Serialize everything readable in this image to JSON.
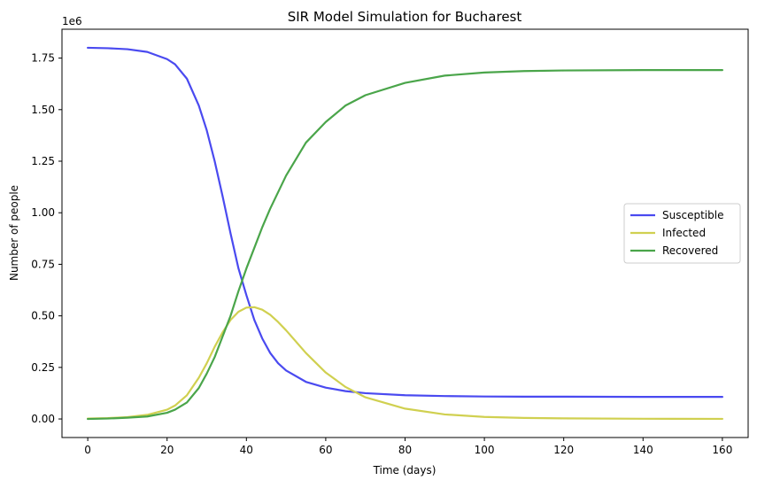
{
  "chart_data": {
    "type": "line",
    "title": "SIR Model Simulation for Bucharest",
    "xlabel": "Time (days)",
    "ylabel": "Number of people",
    "y_offset_label": "1e6",
    "xlim": [
      -6.5,
      166.5
    ],
    "ylim": [
      -0.09,
      1.89
    ],
    "y_scale_factor": 1000000,
    "xticks": [
      0,
      20,
      40,
      60,
      80,
      100,
      120,
      140,
      160
    ],
    "yticks": [
      0.0,
      0.25,
      0.5,
      0.75,
      1.0,
      1.25,
      1.5,
      1.75
    ],
    "ytick_labels": [
      "0.00",
      "0.25",
      "0.50",
      "0.75",
      "1.00",
      "1.25",
      "1.50",
      "1.75"
    ],
    "xtick_labels": [
      "0",
      "20",
      "40",
      "60",
      "80",
      "100",
      "120",
      "140",
      "160"
    ],
    "grid": false,
    "legend_position": "center-right",
    "x": [
      0,
      5,
      10,
      15,
      20,
      22,
      25,
      28,
      30,
      32,
      34,
      36,
      38,
      40,
      42,
      44,
      46,
      48,
      50,
      55,
      60,
      65,
      70,
      80,
      90,
      100,
      110,
      120,
      140,
      160
    ],
    "series": [
      {
        "name": "Susceptible",
        "color": "#4a4af0",
        "values": [
          1.8,
          1.798,
          1.793,
          1.78,
          1.745,
          1.72,
          1.65,
          1.52,
          1.4,
          1.25,
          1.08,
          0.9,
          0.73,
          0.6,
          0.48,
          0.39,
          0.32,
          0.27,
          0.235,
          0.18,
          0.152,
          0.135,
          0.125,
          0.115,
          0.111,
          0.109,
          0.108,
          0.108,
          0.107,
          0.107
        ]
      },
      {
        "name": "Infected",
        "color": "#d0d050",
        "values": [
          0.002,
          0.004,
          0.009,
          0.02,
          0.045,
          0.065,
          0.115,
          0.2,
          0.27,
          0.35,
          0.42,
          0.48,
          0.52,
          0.54,
          0.542,
          0.53,
          0.505,
          0.47,
          0.43,
          0.32,
          0.225,
          0.155,
          0.105,
          0.05,
          0.022,
          0.01,
          0.005,
          0.003,
          0.001,
          0.0005
        ]
      },
      {
        "name": "Recovered",
        "color": "#4aa54a",
        "values": [
          0.0,
          0.002,
          0.006,
          0.012,
          0.03,
          0.045,
          0.08,
          0.15,
          0.22,
          0.3,
          0.4,
          0.5,
          0.62,
          0.73,
          0.83,
          0.93,
          1.02,
          1.1,
          1.18,
          1.34,
          1.44,
          1.52,
          1.57,
          1.63,
          1.665,
          1.68,
          1.687,
          1.69,
          1.692,
          1.692
        ]
      }
    ]
  }
}
